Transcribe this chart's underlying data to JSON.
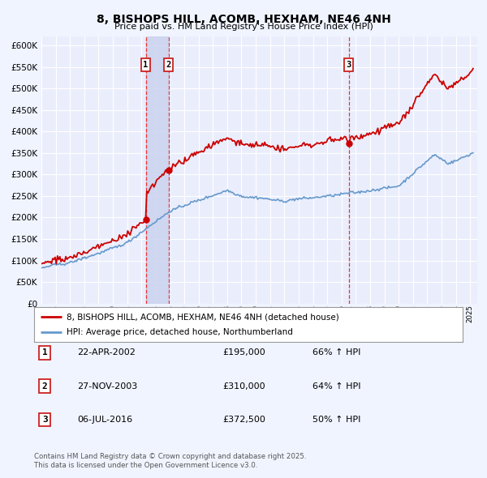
{
  "title": "8, BISHOPS HILL, ACOMB, HEXHAM, NE46 4NH",
  "subtitle": "Price paid vs. HM Land Registry's House Price Index (HPI)",
  "legend_property": "8, BISHOPS HILL, ACOMB, HEXHAM, NE46 4NH (detached house)",
  "legend_hpi": "HPI: Average price, detached house, Northumberland",
  "footer_line1": "Contains HM Land Registry data © Crown copyright and database right 2025.",
  "footer_line2": "This data is licensed under the Open Government Licence v3.0.",
  "sales": [
    {
      "num": 1,
      "date": "22-APR-2002",
      "price": "£195,000",
      "pct": "66% ↑ HPI"
    },
    {
      "num": 2,
      "date": "27-NOV-2003",
      "price": "£310,000",
      "pct": "64% ↑ HPI"
    },
    {
      "num": 3,
      "date": "06-JUL-2016",
      "price": "£372,500",
      "pct": "50% ↑ HPI"
    }
  ],
  "sale_dates_decimal": [
    2002.3,
    2003.9,
    2016.51
  ],
  "sale_prices": [
    195000,
    310000,
    372500
  ],
  "vline_dates": [
    2002.3,
    2003.9,
    2016.51
  ],
  "highlight_spans": [
    [
      2002.3,
      2003.9
    ]
  ],
  "ylim": [
    0,
    620000
  ],
  "yticks": [
    0,
    50000,
    100000,
    150000,
    200000,
    250000,
    300000,
    350000,
    400000,
    450000,
    500000,
    550000,
    600000
  ],
  "xlim_start": 1995.0,
  "xlim_end": 2025.5,
  "background_color": "#f0f4ff",
  "plot_bg": "#eaeefc",
  "red_color": "#cc0000",
  "blue_color": "#6699cc",
  "grid_color": "#ffffff",
  "vline_color": "#ee3333",
  "highlight_color": "#c8d0ee"
}
